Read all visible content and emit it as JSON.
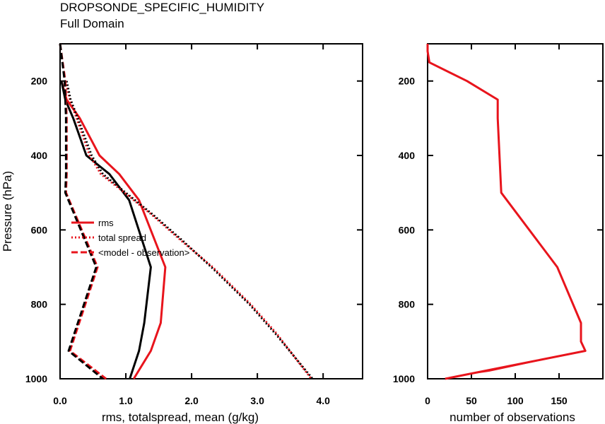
{
  "figure": {
    "title": "DROPSONDE_SPECIFIC_HUMIDITY",
    "subtitle": "Full Domain"
  },
  "chart_data": [
    {
      "type": "line",
      "xlabel": "rms, totalspread, mean (g/kg)",
      "ylabel": "Pressure (hPa)",
      "xlim": [
        0,
        4.6
      ],
      "ylim": [
        100,
        1000
      ],
      "y_inverted": true,
      "x_ticks": [
        "0.0",
        "1.0",
        "2.0",
        "3.0",
        "4.0"
      ],
      "y_ticks": [
        "200",
        "400",
        "600",
        "800",
        "1000"
      ],
      "grid": false,
      "legend_position": "left-middle",
      "legend": [
        {
          "label": "rms",
          "style": "solid"
        },
        {
          "label": "total spread",
          "style": "dotted"
        },
        {
          "label": "<model - observation>",
          "style": "dashed"
        }
      ],
      "series": [
        {
          "name": "rms",
          "style": "solid",
          "color": "#e8141c",
          "x": [
            0.02,
            0.1,
            0.3,
            0.6,
            0.9,
            1.2,
            1.6,
            1.53,
            1.38,
            1.12
          ],
          "y": [
            200,
            250,
            300,
            400,
            450,
            520,
            700,
            850,
            925,
            1000
          ]
        },
        {
          "style": "solid",
          "color": "#000000",
          "x": [
            0.02,
            0.08,
            0.2,
            0.4,
            0.75,
            1.05,
            1.38,
            1.28,
            1.2,
            1.06
          ],
          "y": [
            200,
            250,
            300,
            400,
            450,
            520,
            700,
            850,
            925,
            1000
          ]
        },
        {
          "name": "total spread",
          "style": "dotted",
          "color": "#e8141c",
          "x": [
            0.08,
            0.15,
            0.25,
            0.45,
            0.62,
            0.98,
            1.4,
            1.85,
            2.32,
            2.9,
            3.3,
            3.82
          ],
          "y": [
            200,
            250,
            300,
            400,
            450,
            500,
            560,
            630,
            700,
            800,
            880,
            1000
          ]
        },
        {
          "style": "dotted",
          "color": "#000000",
          "x": [
            0.1,
            0.16,
            0.27,
            0.48,
            0.65,
            1.0,
            1.42,
            1.87,
            2.3,
            2.88,
            3.28,
            3.84
          ],
          "y": [
            200,
            250,
            300,
            400,
            450,
            500,
            560,
            630,
            700,
            800,
            880,
            1000
          ]
        },
        {
          "name": "<model - observation>",
          "style": "dashed",
          "color": "#e8141c",
          "x": [
            0.0,
            0.08,
            0.1,
            0.1,
            0.1,
            0.09,
            0.57,
            0.15,
            0.7
          ],
          "y": [
            100,
            200,
            300,
            400,
            450,
            500,
            700,
            925,
            1000
          ]
        },
        {
          "style": "dashed",
          "color": "#000000",
          "x": [
            0.0,
            0.07,
            0.09,
            0.09,
            0.09,
            0.08,
            0.55,
            0.13,
            0.65
          ],
          "y": [
            100,
            200,
            300,
            400,
            450,
            500,
            700,
            925,
            1000
          ]
        }
      ]
    },
    {
      "type": "line",
      "xlabel": "number of observations",
      "ylabel": "",
      "xlim": [
        0,
        200
      ],
      "ylim": [
        100,
        1000
      ],
      "y_inverted": true,
      "x_ticks": [
        "0",
        "50",
        "100",
        "150"
      ],
      "y_ticks": [
        "200",
        "400",
        "600",
        "800",
        "1000"
      ],
      "grid": false,
      "series": [
        {
          "style": "solid",
          "color": "#e8141c",
          "width": 3,
          "x": [
            0,
            0,
            2,
            45,
            80,
            80,
            82,
            84,
            148,
            175,
            175,
            180,
            20
          ],
          "y": [
            100,
            120,
            150,
            200,
            250,
            300,
            400,
            500,
            700,
            850,
            900,
            925,
            1000
          ]
        },
        {
          "style": "solid",
          "color": "#e8141c",
          "width": 1,
          "x": [
            178,
            120,
            70,
            40
          ],
          "y": [
            925,
            955,
            980,
            990
          ]
        }
      ]
    }
  ]
}
